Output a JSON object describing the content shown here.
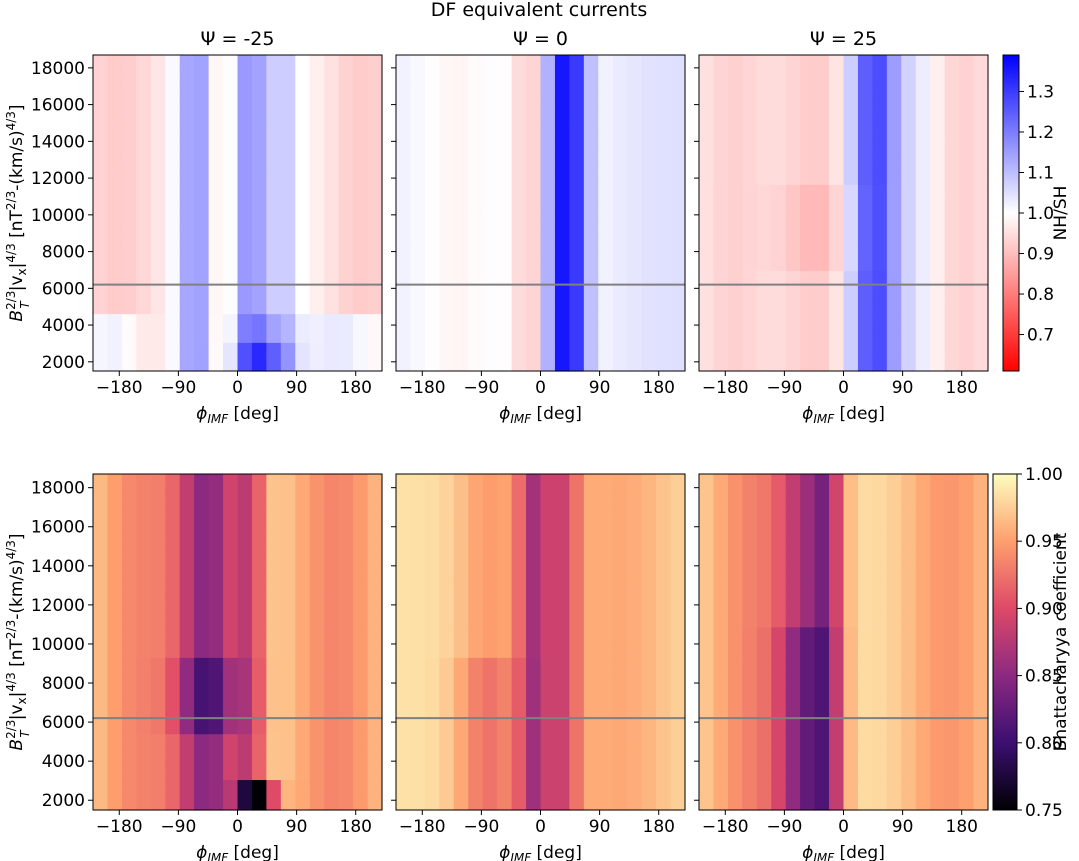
{
  "figure": {
    "suptitle": "DF equivalent currents",
    "xlabel": "ϕ",
    "xlabel_sub": "IMF",
    "xlabel_unit": " [deg]",
    "ylabel": {
      "base": "B",
      "sup1": "2/3",
      "sub1": "T",
      "mid": "|v",
      "sub2": "x",
      "mid2": "|",
      "sup2": "4/3",
      "unit_open": " [nT",
      "sup3": "2/3",
      "unit_mid": "-(km/s)",
      "sup4": "4/3",
      "unit_close": "]"
    },
    "x_ticks": [
      -180,
      -90,
      0,
      90,
      180
    ],
    "x_tick_labels": [
      "−180",
      "−90",
      "0",
      "90",
      "180"
    ],
    "y_ticks": [
      2000,
      4000,
      6000,
      8000,
      10000,
      12000,
      14000,
      16000,
      18000
    ],
    "y_tick_labels": [
      "2000",
      "4000",
      "6000",
      "8000",
      "10000",
      "12000",
      "14000",
      "16000",
      "18000"
    ],
    "reference_line_y": 6200
  },
  "chart_data": [
    {
      "type": "heatmap",
      "row": "top",
      "title": "Ψ = -25",
      "psi": -25,
      "x_range": [
        -220,
        220
      ],
      "y_range": [
        1500,
        18700
      ],
      "colormap": "bwr_r",
      "crange": [
        0.61,
        1.39
      ],
      "reference_line_y": 6200
    },
    {
      "type": "heatmap",
      "row": "top",
      "title": "Ψ = 0",
      "psi": 0,
      "x_range": [
        -220,
        220
      ],
      "y_range": [
        1500,
        18700
      ],
      "colormap": "bwr_r",
      "crange": [
        0.61,
        1.39
      ],
      "reference_line_y": 6200
    },
    {
      "type": "heatmap",
      "row": "top",
      "title": "Ψ = 25",
      "psi": 25,
      "x_range": [
        -220,
        220
      ],
      "y_range": [
        1500,
        18700
      ],
      "colormap": "bwr_r",
      "crange": [
        0.61,
        1.39
      ],
      "reference_line_y": 6200
    },
    {
      "type": "heatmap",
      "row": "bottom",
      "title": "",
      "psi": -25,
      "x_range": [
        -220,
        220
      ],
      "y_range": [
        1500,
        18700
      ],
      "colormap": "magma",
      "crange": [
        0.75,
        1.0
      ],
      "reference_line_y": 6200
    },
    {
      "type": "heatmap",
      "row": "bottom",
      "title": "",
      "psi": 0,
      "x_range": [
        -220,
        220
      ],
      "y_range": [
        1500,
        18700
      ],
      "colormap": "magma",
      "crange": [
        0.75,
        1.0
      ],
      "reference_line_y": 6200
    },
    {
      "type": "heatmap",
      "row": "bottom",
      "title": "",
      "psi": 25,
      "x_range": [
        -220,
        220
      ],
      "y_range": [
        1500,
        18700
      ],
      "colormap": "magma",
      "crange": [
        0.75,
        1.0
      ],
      "reference_line_y": 6200
    }
  ],
  "colorbars": {
    "top": {
      "label": "NH/SH",
      "min": 0.61,
      "max": 1.39,
      "ticks": [
        0.7,
        0.8,
        0.9,
        1.0,
        1.1,
        1.2,
        1.3
      ],
      "tick_labels": [
        "0.7",
        "0.8",
        "0.9",
        "1.0",
        "1.1",
        "1.2",
        "1.3"
      ],
      "stops": [
        "#ff0000",
        "#ffffff",
        "#0000ff"
      ]
    },
    "bottom": {
      "label": "Bhattacharyya coefficient",
      "min": 0.75,
      "max": 1.0,
      "ticks": [
        0.75,
        0.8,
        0.85,
        0.9,
        0.95,
        1.0
      ],
      "tick_labels": [
        "0.75",
        "0.80",
        "0.85",
        "0.90",
        "0.95",
        "1.00"
      ],
      "stops": [
        "#000004",
        "#3b0f70",
        "#8c2981",
        "#de4968",
        "#fe9f6d",
        "#fcfdbf"
      ]
    }
  }
}
